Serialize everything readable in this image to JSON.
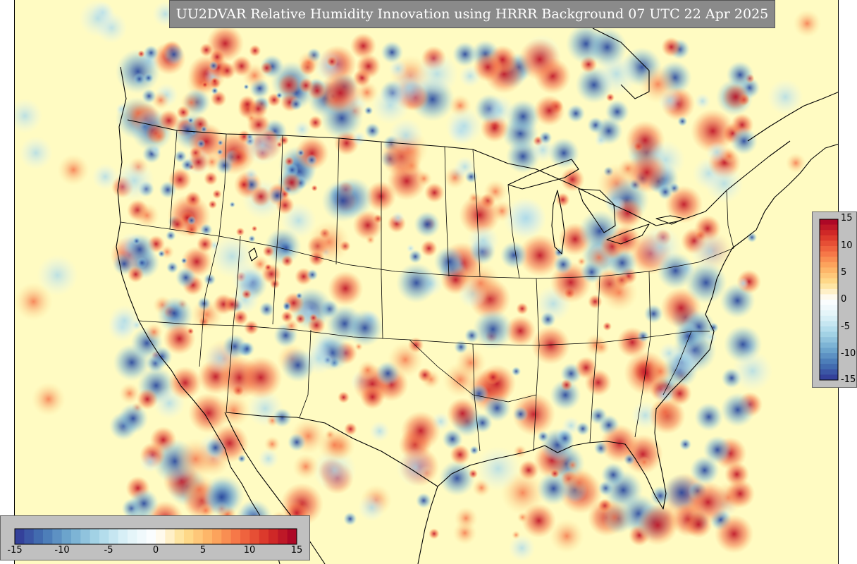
{
  "title": "UU2DVAR Relative Humidity Innovation using HRRR Background 07 UTC 22 Apr 2025",
  "colorbar_vertical": {
    "ticks": [
      "15",
      "10",
      "5",
      "0",
      "-5",
      "-10",
      "-15"
    ]
  },
  "colorbar_horizontal": {
    "ticks": [
      "-15",
      "-10",
      "-5",
      "0",
      "5",
      "10",
      "15"
    ]
  },
  "colormap": {
    "min": -15,
    "max": 15,
    "stops": [
      "#313695",
      "#4575b4",
      "#74add1",
      "#abd9e9",
      "#e0f3f8",
      "#ffffff",
      "#fee090",
      "#fdae61",
      "#f46d43",
      "#d73027",
      "#a50026"
    ]
  },
  "map": {
    "background_color": "#fffbc2",
    "coastline_color": "#000000"
  }
}
